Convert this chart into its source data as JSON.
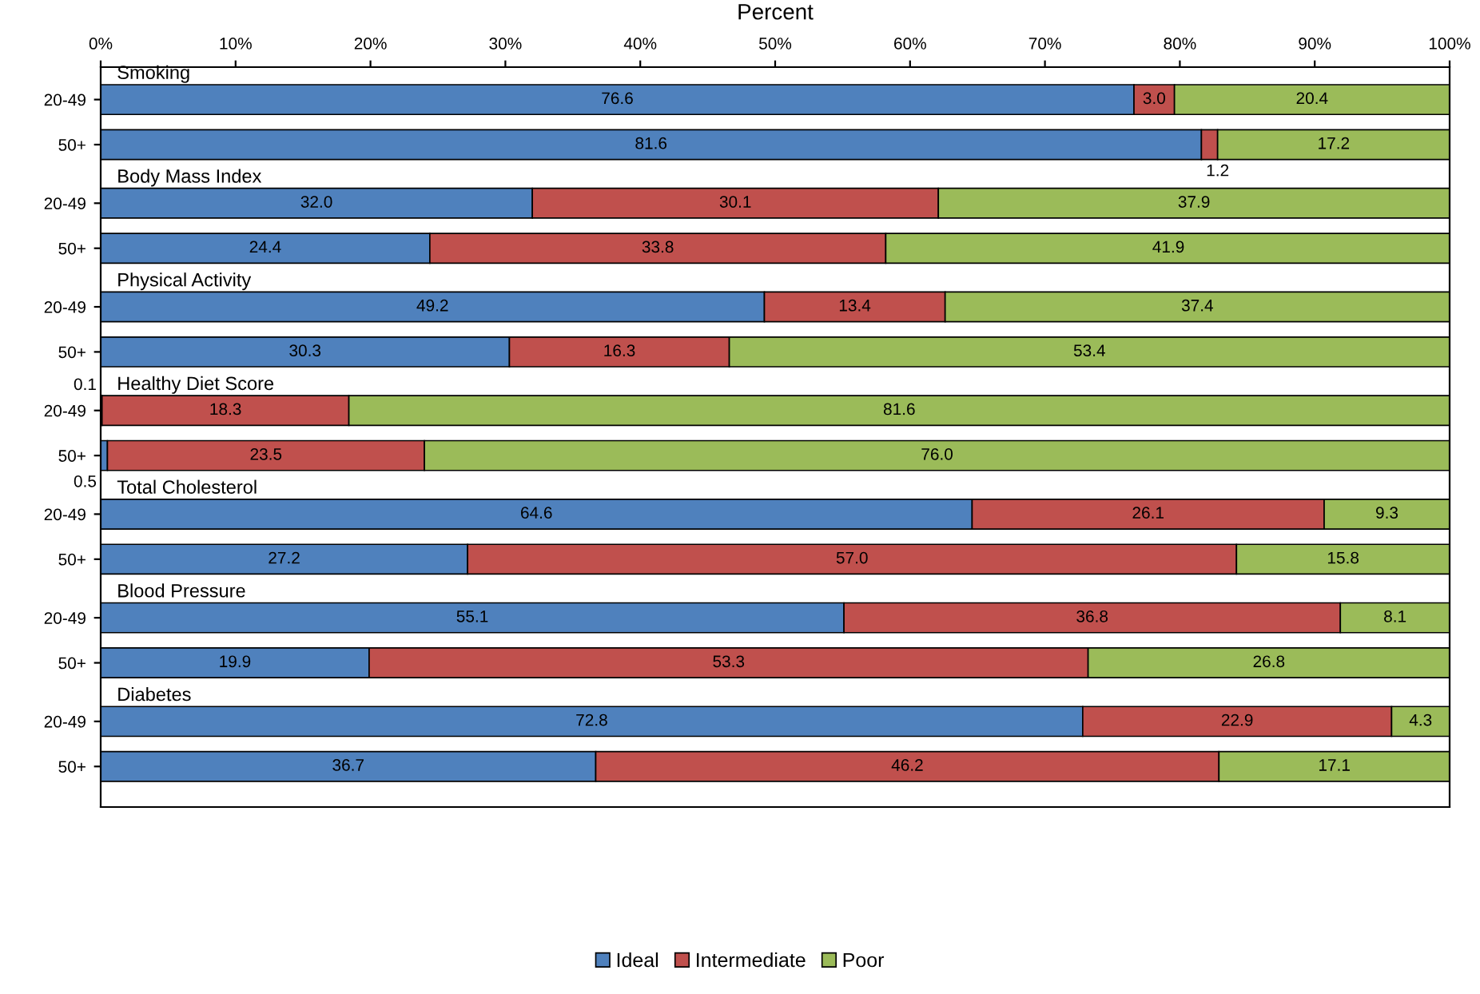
{
  "chart_data": {
    "type": "bar",
    "orientation": "horizontal",
    "stacked": true,
    "xlabel": "Percent",
    "categories": [
      "20-49",
      "50+",
      "20-49",
      "50+",
      "20-49",
      "50+",
      "20-49",
      "50+",
      "20-49",
      "50+",
      "20-49",
      "50+",
      "20-49",
      "50+"
    ],
    "annotations": [
      "Smoking",
      "Body Mass Index",
      "Physical Activity",
      "Healthy Diet Score",
      "Total Cholesterol",
      "Blood Pressure",
      "Diabetes"
    ],
    "series": [
      {
        "name": "Ideal",
        "color": "#4f81bd",
        "values": [
          76.6,
          81.6,
          32.0,
          24.4,
          49.2,
          30.3,
          0.1,
          0.5,
          64.6,
          27.2,
          55.1,
          19.9,
          72.8,
          36.7
        ],
        "value_labels": [
          "76.6",
          "81.6",
          "32.0",
          "24.4",
          "49.2",
          "30.3",
          "0.1",
          "0.5",
          "64.6",
          "27.2",
          "55.1",
          "19.9",
          "72.8",
          "36.7"
        ]
      },
      {
        "name": "Intermediate",
        "color": "#c0504d",
        "values": [
          3.0,
          1.2,
          30.1,
          33.8,
          13.4,
          16.3,
          18.3,
          23.5,
          26.1,
          57.0,
          36.8,
          53.3,
          22.9,
          46.2
        ],
        "value_labels": [
          "3.0",
          "1.2",
          "30.1",
          "33.8",
          "13.4",
          "16.3",
          "18.3",
          "23.5",
          "26.1",
          "57.0",
          "36.8",
          "53.3",
          "22.9",
          "46.2"
        ]
      },
      {
        "name": "Poor",
        "color": "#9bbb59",
        "values": [
          20.4,
          17.2,
          37.9,
          41.9,
          37.4,
          53.4,
          81.6,
          76.0,
          9.3,
          15.8,
          8.1,
          26.8,
          4.3,
          17.1
        ],
        "value_labels": [
          "20.4",
          "17.2",
          "37.9",
          "41.9",
          "37.4",
          "53.4",
          "81.6",
          "76.0",
          "9.3",
          "15.8",
          "8.1",
          "26.8",
          "4.3",
          "17.1"
        ]
      }
    ],
    "xlim": [
      0,
      100
    ],
    "xticks": [
      {
        "value": 0,
        "label": "0%"
      },
      {
        "value": 10,
        "label": "10%"
      },
      {
        "value": 20,
        "label": "20%"
      },
      {
        "value": 30,
        "label": "30%"
      },
      {
        "value": 40,
        "label": "40%"
      },
      {
        "value": 50,
        "label": "50%"
      },
      {
        "value": 60,
        "label": "60%"
      },
      {
        "value": 70,
        "label": "70%"
      },
      {
        "value": 80,
        "label": "80%"
      },
      {
        "value": 90,
        "label": "90%"
      },
      {
        "value": 100,
        "label": "100%"
      }
    ],
    "legend": "bottom",
    "grid": false
  }
}
